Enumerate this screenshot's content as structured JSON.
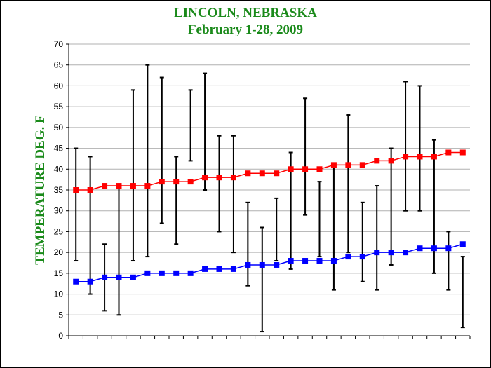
{
  "chart_data": {
    "type": "line",
    "title": "LINCOLN, NEBRASKA",
    "subtitle": "February 1-28, 2009",
    "ylabel": "TEMPERATURE DEG. F",
    "xlabel": "",
    "ylim": [
      0,
      70
    ],
    "yticks": [
      0,
      5,
      10,
      15,
      20,
      25,
      30,
      35,
      40,
      45,
      50,
      55,
      60,
      65,
      70
    ],
    "x": [
      1,
      2,
      3,
      4,
      5,
      6,
      7,
      8,
      9,
      10,
      11,
      12,
      13,
      14,
      15,
      16,
      17,
      18,
      19,
      20,
      21,
      22,
      23,
      24,
      25,
      26,
      27,
      28
    ],
    "grid": "horizontal",
    "series": [
      {
        "color": "#ff0000",
        "marker": "square",
        "values": [
          35,
          35,
          36,
          36,
          36,
          36,
          37,
          37,
          37,
          38,
          38,
          38,
          39,
          39,
          39,
          40,
          40,
          40,
          41,
          41,
          41,
          42,
          42,
          43,
          43,
          43,
          44,
          44
        ]
      },
      {
        "color": "#0000ff",
        "marker": "square",
        "values": [
          13,
          13,
          14,
          14,
          14,
          15,
          15,
          15,
          15,
          16,
          16,
          16,
          17,
          17,
          17,
          18,
          18,
          18,
          18,
          19,
          19,
          20,
          20,
          20,
          21,
          21,
          21,
          22
        ]
      }
    ],
    "ranges": {
      "color": "#000000",
      "high": [
        45,
        43,
        22,
        36,
        59,
        65,
        62,
        43,
        59,
        63,
        48,
        48,
        32,
        26,
        33,
        44,
        57,
        37,
        41,
        53,
        32,
        36,
        45,
        61,
        60,
        47,
        25,
        19
      ],
      "low": [
        18,
        10,
        6,
        5,
        18,
        19,
        27,
        22,
        42,
        35,
        25,
        20,
        12,
        1,
        18,
        16,
        29,
        19,
        11,
        20,
        13,
        11,
        17,
        30,
        30,
        15,
        11,
        2
      ]
    }
  }
}
